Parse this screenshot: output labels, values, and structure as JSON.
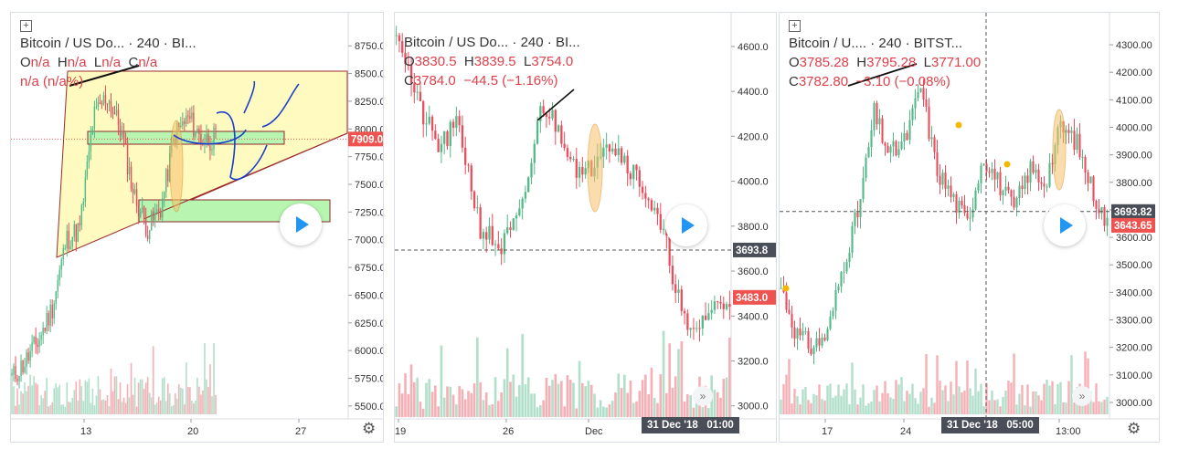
{
  "panels": [
    {
      "legend": {
        "symbol": "Bitcoin / US Do...",
        "interval": "240",
        "exchange": "BI...",
        "o_label": "O",
        "o": "n/a",
        "h_label": "H",
        "h": "n/a",
        "l_label": "L",
        "l": "n/a",
        "c_label": "C",
        "c": "n/a",
        "change": "n/a (n/a%)"
      },
      "price_tag": "7909.0",
      "y_ticks": [
        "8750.0",
        "8500.0",
        "8250.0",
        "8000.0",
        "7750.0",
        "7500.0",
        "7250.0",
        "7000.0",
        "6750.0",
        "6500.0",
        "6250.0",
        "6000.0",
        "5750.0",
        "5500.0"
      ],
      "x_ticks": [
        "13",
        "20",
        "27"
      ]
    },
    {
      "legend": {
        "symbol": "Bitcoin / US Do...",
        "interval": "240",
        "exchange": "BI...",
        "o_label": "O",
        "o": "3830.5",
        "h_label": "H",
        "h": "3839.5",
        "l_label": "L",
        "l": "3754.0",
        "c_label": "C",
        "c": "3784.0",
        "change": "−44.5 (−1.16%)"
      },
      "crosshair_tag": "3693.8",
      "price_tag": "3483.0",
      "y_ticks": [
        "4600.0",
        "4400.0",
        "4200.0",
        "4000.0",
        "3800.0",
        "3600.0",
        "3400.0",
        "3200.0",
        "3000.0"
      ],
      "x_ticks": [
        "19",
        "26",
        "Dec"
      ],
      "time_tag": "31 Dec '18   01:00"
    },
    {
      "legend": {
        "symbol": "Bitcoin / U....",
        "interval": "240",
        "exchange": "BITST...",
        "o_label": "O",
        "o": "3785.28",
        "h_label": "H",
        "h": "3795.28",
        "l_label": "L",
        "l": "3771.00",
        "c_label": "C",
        "c": "3782.80",
        "change": "−3.10 (−0.08%)"
      },
      "crosshair_tag": "3693.82",
      "price_tag": "3643.65",
      "y_ticks": [
        "4300.00",
        "4200.00",
        "4100.00",
        "4000.00",
        "3900.00",
        "3800.00",
        "3700.00",
        "3600.00",
        "3500.00",
        "3400.00",
        "3300.00",
        "3200.00",
        "3100.00",
        "3000.00"
      ],
      "x_ticks": [
        "17",
        "24",
        "13:00"
      ],
      "time_tag": "31 Dec '18   05:00"
    }
  ],
  "icons": {
    "play": "play-icon",
    "settings": "gear-icon",
    "scroll": "fast-forward-icon",
    "add": "plus-icon"
  },
  "colors": {
    "up": "#53b987",
    "down": "#eb4d5c",
    "pricetag_red": "#ef5350",
    "drawing_blue": "#1a3fcf",
    "zone_green": "#b7f5b0",
    "triangle_yellow": "#fffac0"
  },
  "chart_data": [
    {
      "type": "candlestick",
      "symbol": "Bitcoin / US Dollar",
      "interval": "240",
      "ylim": [
        5400,
        8900
      ],
      "x_ticks": [
        "13",
        "20",
        "27"
      ],
      "last_price": 7909.0
    },
    {
      "type": "candlestick",
      "symbol": "Bitcoin / US Dollar",
      "interval": "240",
      "ylim": [
        2950,
        4750
      ],
      "x_ticks": [
        "19",
        "26",
        "Dec"
      ],
      "ohlc": {
        "open": 3830.5,
        "high": 3839.5,
        "low": 3754.0,
        "close": 3784.0,
        "change": -44.5,
        "change_pct": -1.16
      },
      "crosshair_price": 3693.8,
      "last_price": 3483.0
    },
    {
      "type": "candlestick",
      "symbol": "Bitcoin / U.... BITSTAMP",
      "interval": "240",
      "ylim": [
        2970,
        4340
      ],
      "x_ticks": [
        "17",
        "24",
        "13:00"
      ],
      "ohlc": {
        "open": 3785.28,
        "high": 3795.28,
        "low": 3771.0,
        "close": 3782.8,
        "change": -3.1,
        "change_pct": -0.08
      },
      "crosshair_price": 3693.82,
      "last_price": 3643.65
    }
  ]
}
